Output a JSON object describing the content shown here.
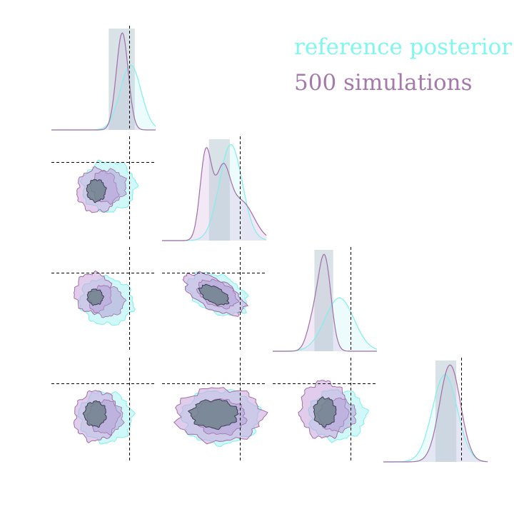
{
  "legend": {
    "placement": "top-right",
    "entries": [
      {
        "label": "reference posterior",
        "color": "#7ff7ef"
      },
      {
        "label": "500 simulations",
        "color": "#a47aaa"
      }
    ]
  },
  "colors": {
    "reference_fill": "#a9f3f3",
    "reference_line": "#7ff0ea",
    "sim_fill": "#cba2dd",
    "sim_line": "#a06ea8",
    "inner_fill": "#6c7e86",
    "truth_line": "#000000"
  },
  "chart_data": {
    "type": "corner",
    "n_params": 4,
    "grid": false,
    "axes_visible": false,
    "truth": [
      0.25,
      0.25,
      0.25,
      0.25
    ],
    "range": [
      -0.5,
      0.5
    ],
    "marginals": [
      {
        "param": 1,
        "reference": {
          "mean": 0.26,
          "sd": 0.1,
          "peak": 0.67
        },
        "simulations": {
          "components": [
            {
              "mean": 0.18,
              "sd": 0.057,
              "amp": 1.0
            }
          ],
          "peak": 1.0
        },
        "interval": [
          0.05,
          0.3
        ]
      },
      {
        "param": 2,
        "reference": {
          "mean": 0.16,
          "sd": 0.11,
          "peak": 0.99
        },
        "simulations": {
          "components": [
            {
              "mean": -0.08,
              "sd": 0.055,
              "amp": 0.72
            },
            {
              "mean": 0.08,
              "sd": 0.07,
              "amp": 0.52
            },
            {
              "mean": 0.26,
              "sd": 0.12,
              "amp": 0.32
            }
          ],
          "peak": 0.96
        },
        "interval": [
          -0.05,
          0.15
        ]
      },
      {
        "param": 3,
        "reference": {
          "mean": 0.14,
          "sd": 0.14,
          "peak": 0.55
        },
        "simulations": {
          "components": [
            {
              "mean": 0.0,
              "sd": 0.06,
              "amp": 0.86
            },
            {
              "mean": -0.11,
              "sd": 0.06,
              "amp": 0.28
            }
          ],
          "peak": 1.0
        },
        "interval": [
          -0.1,
          0.08
        ]
      },
      {
        "param": 4,
        "reference": {
          "mean": 0.09,
          "sd": 0.12,
          "peak": 0.9
        },
        "simulations": {
          "components": [
            {
              "mean": 0.14,
              "sd": 0.1,
              "amp": 1.0
            }
          ],
          "peak": 1.0
        },
        "interval": [
          0.0,
          0.2
        ]
      }
    ],
    "pairs": [
      {
        "row": 2,
        "col": 1,
        "sim": {
          "center": [
            -0.06,
            -0.02
          ],
          "sd": [
            0.12,
            0.13
          ],
          "rho": 0.0
        },
        "ref": {
          "center": [
            0.05,
            0.02
          ],
          "sd": [
            0.16,
            0.15
          ],
          "rho": 0.0
        },
        "inner": {
          "center": [
            -0.07,
            -0.02
          ],
          "sd": [
            0.06,
            0.07
          ],
          "rho": 0.0
        }
      },
      {
        "row": 3,
        "col": 1,
        "sim": {
          "center": [
            -0.1,
            0.06
          ],
          "sd": [
            0.11,
            0.12
          ],
          "rho": -0.1
        },
        "ref": {
          "center": [
            0.03,
            -0.02
          ],
          "sd": [
            0.16,
            0.14
          ],
          "rho": -0.2
        },
        "inner": {
          "center": [
            -0.08,
            0.02
          ],
          "sd": [
            0.05,
            0.05
          ],
          "rho": 0.0
        }
      },
      {
        "row": 3,
        "col": 2,
        "sim": {
          "center": [
            0.0,
            0.05
          ],
          "sd": [
            0.2,
            0.09
          ],
          "rho": -0.55
        },
        "ref": {
          "center": [
            0.03,
            0.05
          ],
          "sd": [
            0.19,
            0.11
          ],
          "rho": -0.45
        },
        "inner": {
          "center": [
            0.0,
            0.04
          ],
          "sd": [
            0.1,
            0.05
          ],
          "rho": -0.5
        }
      },
      {
        "row": 4,
        "col": 1,
        "sim": {
          "center": [
            -0.07,
            -0.06
          ],
          "sd": [
            0.13,
            0.15
          ],
          "rho": -0.2
        },
        "ref": {
          "center": [
            0.02,
            -0.07
          ],
          "sd": [
            0.16,
            0.15
          ],
          "rho": -0.3
        },
        "inner": {
          "center": [
            -0.08,
            -0.04
          ],
          "sd": [
            0.07,
            0.08
          ],
          "rho": 0.0
        }
      },
      {
        "row": 4,
        "col": 2,
        "sim": {
          "center": [
            0.05,
            -0.05
          ],
          "sd": [
            0.26,
            0.16
          ],
          "rho": 0.0
        },
        "ref": {
          "center": [
            0.06,
            -0.07
          ],
          "sd": [
            0.23,
            0.16
          ],
          "rho": 0.0
        },
        "inner": {
          "center": [
            0.0,
            -0.04
          ],
          "sd": [
            0.15,
            0.09
          ],
          "rho": 0.0
        }
      },
      {
        "row": 4,
        "col": 3,
        "sim": {
          "center": [
            -0.01,
            0.0
          ],
          "sd": [
            0.14,
            0.17
          ],
          "rho": 0.0
        },
        "ref": {
          "center": [
            0.12,
            -0.05
          ],
          "sd": [
            0.17,
            0.15
          ],
          "rho": 0.0
        },
        "inner": {
          "center": [
            0.0,
            -0.02
          ],
          "sd": [
            0.07,
            0.09
          ],
          "rho": 0.0
        }
      }
    ]
  }
}
